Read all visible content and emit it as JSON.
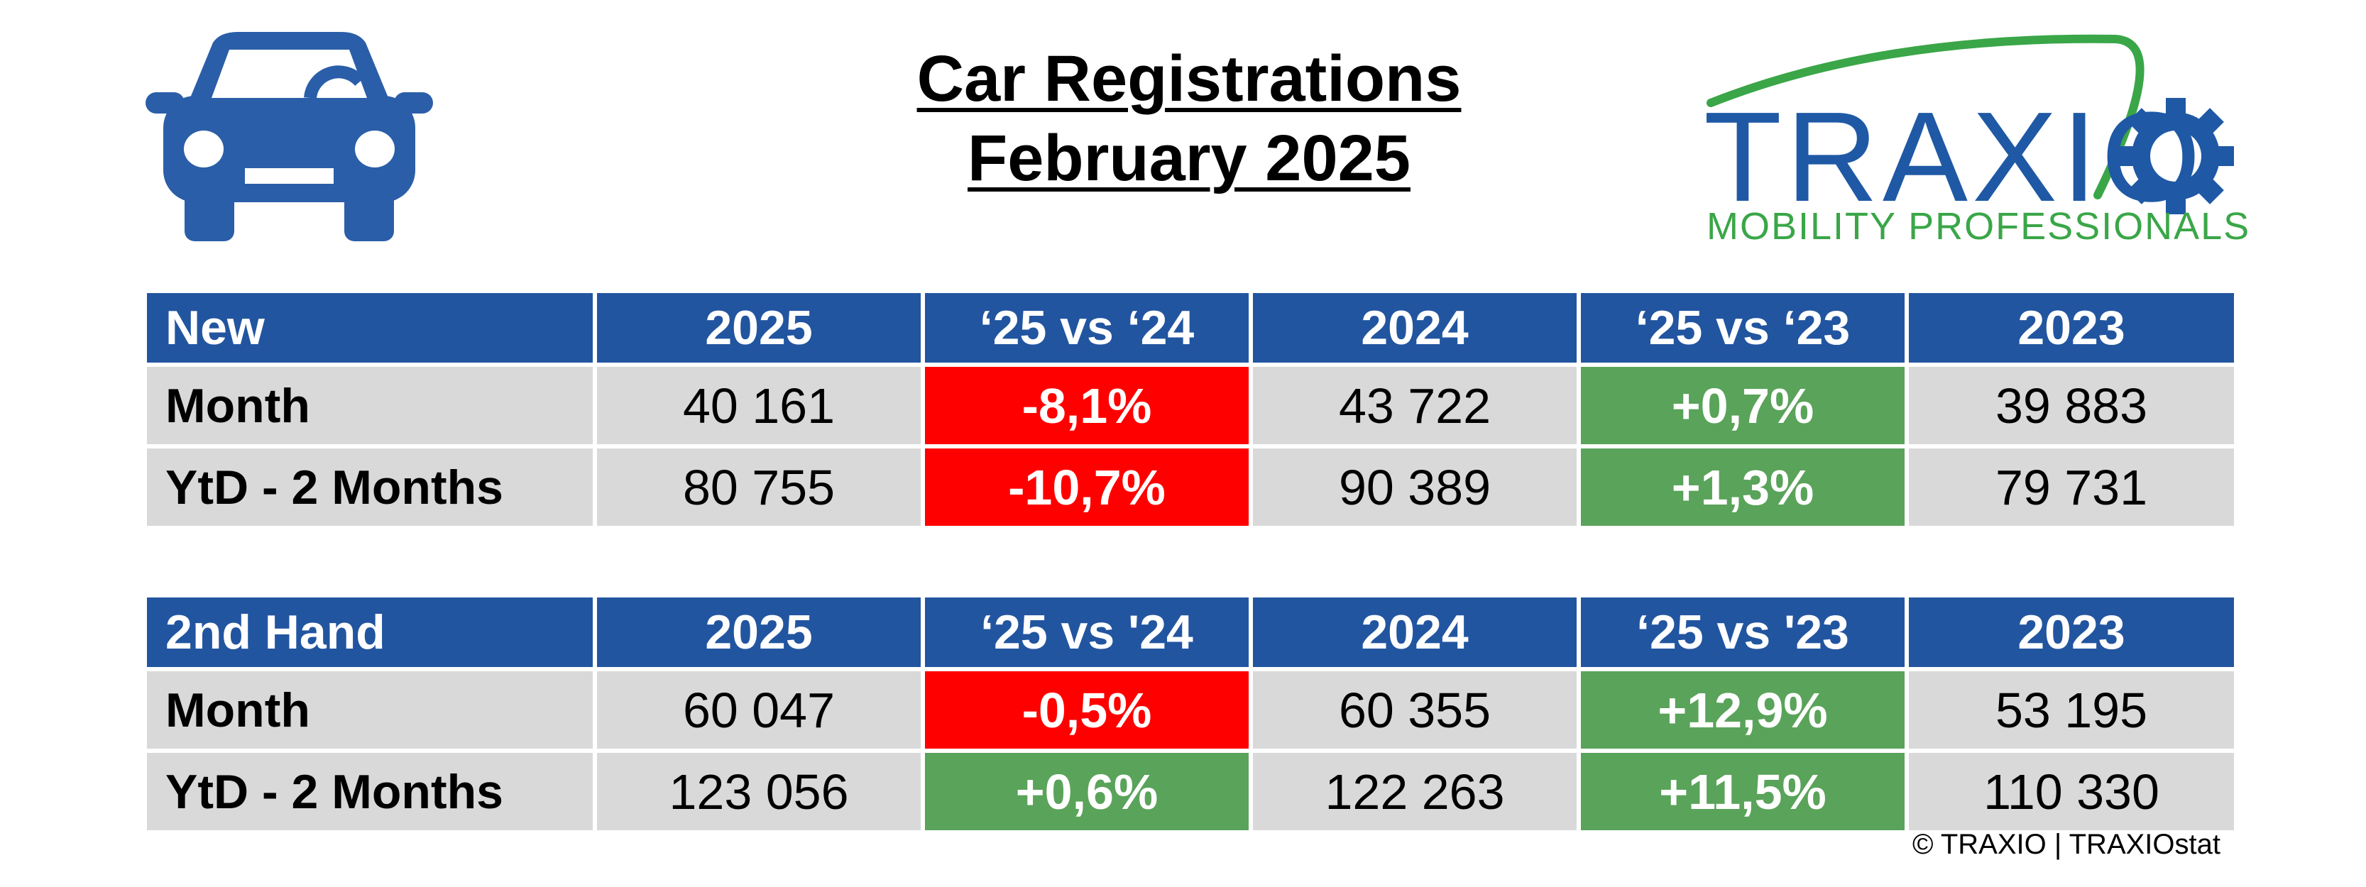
{
  "title": {
    "line1": "Car Registrations",
    "line2": "February 2025"
  },
  "logo": {
    "name": "TRAXIO",
    "tagline": "MOBILITY PROFESSIONALS",
    "icons": [
      "car-icon",
      "gear-icon"
    ]
  },
  "colors": {
    "header": "#2255a0",
    "negative": "#ff0000",
    "positive": "#5aa35a",
    "cell": "#d9d9d9",
    "logo_blue": "#1f59a5",
    "logo_green": "#3aa648"
  },
  "tables": [
    {
      "headers": [
        "New",
        "2025",
        "‘25 vs ‘24",
        "2024",
        "‘25 vs ‘23",
        "2023"
      ],
      "rows": [
        {
          "label": "Month",
          "v2025": "40 161",
          "vs24": "-8,1%",
          "v2024": "43 722",
          "vs23": "+0,7%",
          "v2023": "39 883"
        },
        {
          "label": "YtD - 2 Months",
          "v2025": "80 755",
          "vs24": "-10,7%",
          "v2024": "90 389",
          "vs23": "+1,3%",
          "v2023": "79 731"
        }
      ]
    },
    {
      "headers": [
        "2nd Hand",
        "2025",
        "‘25 vs '24",
        "2024",
        "‘25 vs '23",
        "2023"
      ],
      "rows": [
        {
          "label": "Month",
          "v2025": "60 047",
          "vs24": "-0,5%",
          "v2024": "60 355",
          "vs23": "+12,9%",
          "v2023": "53 195"
        },
        {
          "label": "YtD - 2 Months",
          "v2025": "123 056",
          "vs24": "+0,6%",
          "v2024": "122 263",
          "vs23": "+11,5%",
          "v2023": "110 330"
        }
      ]
    }
  ],
  "copyright": "© TRAXIO | TRAXIOstat"
}
